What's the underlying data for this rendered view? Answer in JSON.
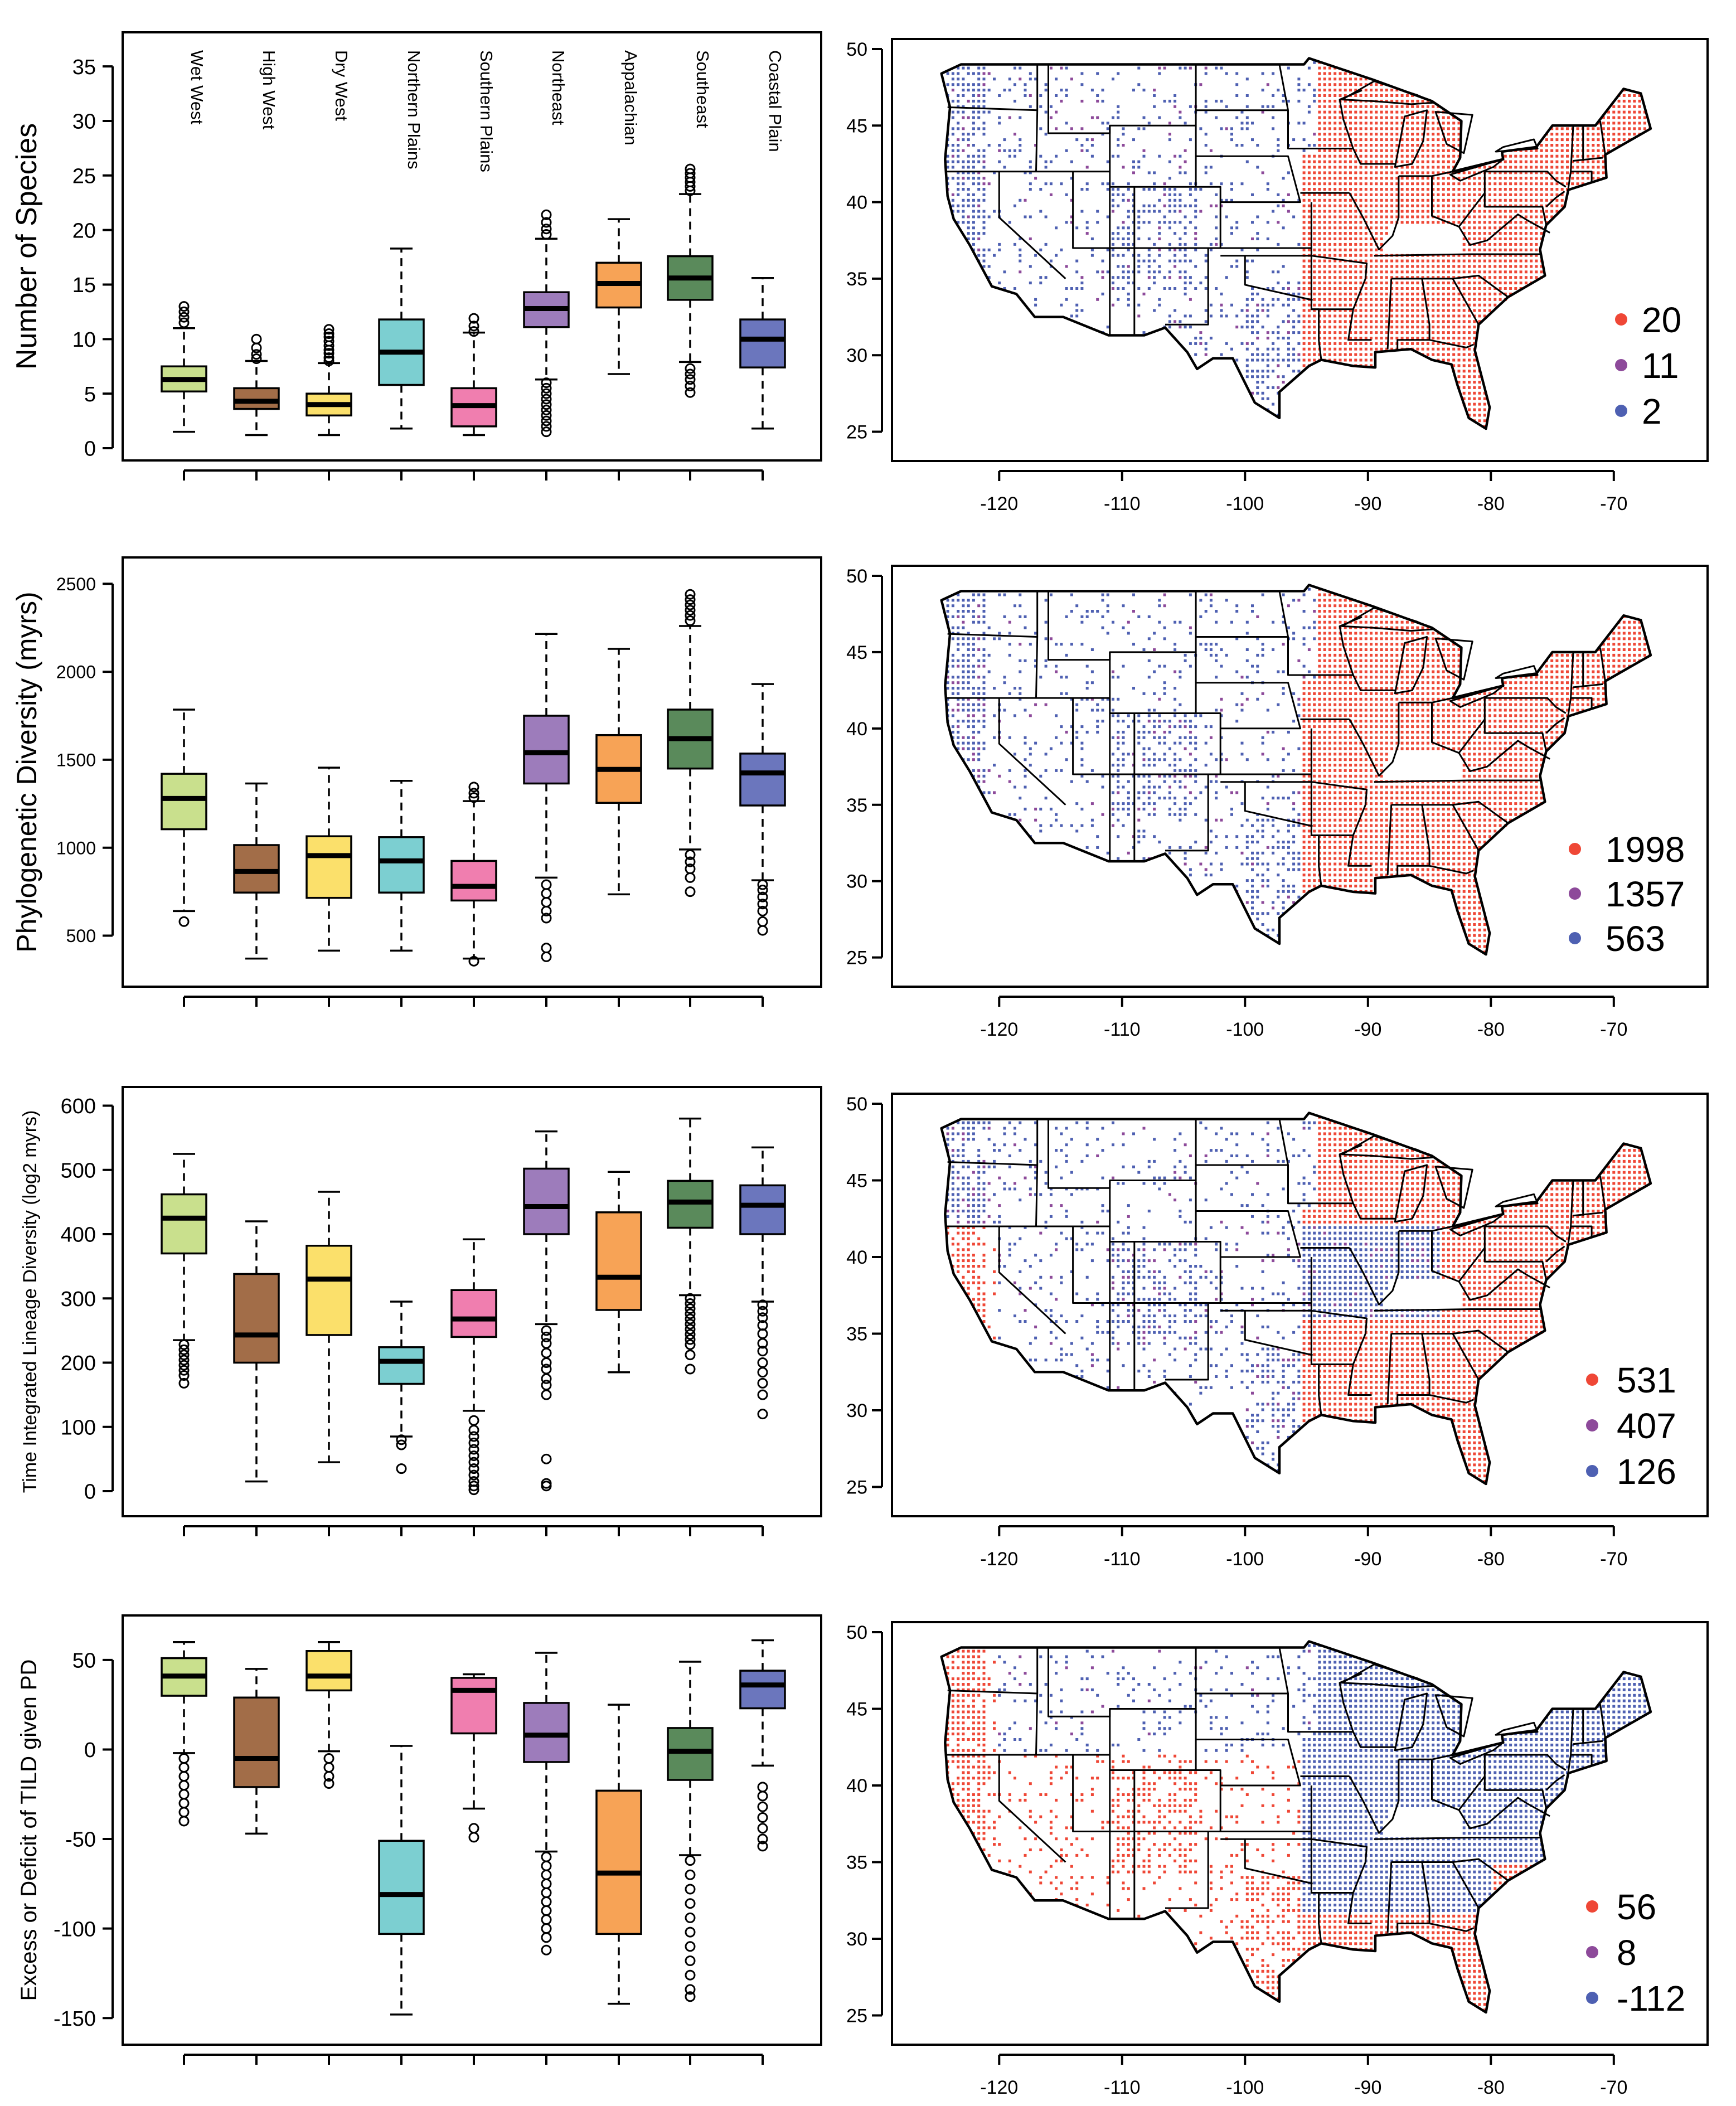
{
  "regions": [
    "Wet West",
    "High West",
    "Dry West",
    "Northern Plains",
    "Southern Plains",
    "Northeast",
    "Appalachian",
    "Southeast",
    "Coastal Plain"
  ],
  "colors": {
    "regions": [
      "#c9e08d",
      "#a26d48",
      "#fbe06b",
      "#7ccfd1",
      "#f07eaf",
      "#9d7cbb",
      "#f7a356",
      "#5a8a5b",
      "#6b76bd"
    ],
    "high": "#ef4736",
    "mid": "#8d4a9a",
    "low": "#4e60b2"
  },
  "chart_data": [
    {
      "type": "box",
      "id": "species",
      "ylabel": "Number of Species",
      "ylim": [
        0,
        37
      ],
      "yticks": [
        0,
        5,
        10,
        15,
        20,
        25,
        30,
        35
      ],
      "categories": [
        "Wet West",
        "High West",
        "Dry West",
        "Northern Plains",
        "Southern Plains",
        "Northeast",
        "Appalachian",
        "Southeast",
        "Coastal Plain"
      ],
      "boxes": [
        {
          "min": 1.5,
          "q1": 5.2,
          "median": 6.3,
          "q3": 7.5,
          "max": 11,
          "outliers": [
            11.5,
            12.0,
            12.5,
            13.0
          ]
        },
        {
          "min": 1.2,
          "q1": 3.6,
          "median": 4.3,
          "q3": 5.5,
          "max": 8,
          "outliers": [
            8.2,
            8.6,
            9.2,
            10.0
          ]
        },
        {
          "min": 1.2,
          "q1": 3.0,
          "median": 4.0,
          "q3": 5.0,
          "max": 7.8,
          "outliers": [
            8.0,
            8.3,
            8.7,
            9.0,
            9.4,
            9.8,
            10.2,
            10.5,
            10.9
          ]
        },
        {
          "min": 1.8,
          "q1": 5.8,
          "median": 8.8,
          "q3": 11.8,
          "max": 18.3,
          "outliers": []
        },
        {
          "min": 1.2,
          "q1": 2.0,
          "median": 3.9,
          "q3": 5.5,
          "max": 10.6,
          "outliers": [
            10.7,
            11.2,
            11.9
          ]
        },
        {
          "min": 6.3,
          "q1": 11.1,
          "median": 12.8,
          "q3": 14.3,
          "max": 19.2,
          "outliers": [
            19.6,
            20.1,
            20.7,
            21.4,
            1.5,
            2.0,
            2.5,
            3.0,
            3.5,
            4.0,
            4.5,
            5.0,
            5.5,
            6.0
          ]
        },
        {
          "min": 6.8,
          "q1": 12.9,
          "median": 15.1,
          "q3": 17.0,
          "max": 21.0,
          "outliers": []
        },
        {
          "min": 7.9,
          "q1": 13.6,
          "median": 15.6,
          "q3": 17.6,
          "max": 23.3,
          "outliers": [
            23.6,
            24.0,
            24.4,
            24.8,
            25.2,
            25.6,
            7.3,
            6.8,
            6.3,
            5.7,
            5.1
          ]
        },
        {
          "min": 1.8,
          "q1": 7.4,
          "median": 10.0,
          "q3": 11.8,
          "max": 15.6,
          "outliers": []
        }
      ],
      "map_legend": [
        "20",
        "11",
        "2"
      ]
    },
    {
      "type": "box",
      "id": "pd",
      "ylabel": "Phylogenetic Diversity (myrs)",
      "ylim": [
        280,
        2580
      ],
      "yticks": [
        500,
        1000,
        1500,
        2000,
        2500
      ],
      "categories": [
        "Wet West",
        "High West",
        "Dry West",
        "Northern Plains",
        "Southern Plains",
        "Northeast",
        "Appalachian",
        "Southeast",
        "Coastal Plain"
      ],
      "boxes": [
        {
          "min": 640,
          "q1": 1105,
          "median": 1280,
          "q3": 1420,
          "max": 1785,
          "outliers": [
            580
          ]
        },
        {
          "min": 370,
          "q1": 745,
          "median": 865,
          "q3": 1015,
          "max": 1365,
          "outliers": []
        },
        {
          "min": 415,
          "q1": 715,
          "median": 955,
          "q3": 1065,
          "max": 1455,
          "outliers": []
        },
        {
          "min": 415,
          "q1": 745,
          "median": 925,
          "q3": 1060,
          "max": 1380,
          "outliers": []
        },
        {
          "min": 370,
          "q1": 700,
          "median": 780,
          "q3": 925,
          "max": 1265,
          "outliers": [
            1285,
            1310,
            1345,
            355
          ]
        },
        {
          "min": 830,
          "q1": 1365,
          "median": 1540,
          "q3": 1750,
          "max": 2215,
          "outliers": [
            790,
            740,
            690,
            640,
            600,
            430,
            380
          ]
        },
        {
          "min": 735,
          "q1": 1255,
          "median": 1445,
          "q3": 1640,
          "max": 2130,
          "outliers": []
        },
        {
          "min": 990,
          "q1": 1450,
          "median": 1620,
          "q3": 1785,
          "max": 2260,
          "outliers": [
            2290,
            2320,
            2350,
            2380,
            2410,
            2440,
            960,
            920,
            880,
            830,
            750
          ]
        },
        {
          "min": 815,
          "q1": 1240,
          "median": 1425,
          "q3": 1535,
          "max": 1930,
          "outliers": [
            790,
            760,
            720,
            680,
            640,
            580,
            530
          ]
        }
      ],
      "map_legend": [
        "1998",
        "1357",
        "563"
      ]
    },
    {
      "type": "box",
      "id": "tild",
      "ylabel": "Time Integrated Lineage Diversity (log2 myrs)",
      "ylim": [
        -20,
        610
      ],
      "yticks": [
        0,
        100,
        200,
        300,
        400,
        500,
        600
      ],
      "categories": [
        "Wet West",
        "High West",
        "Dry West",
        "Northern Plains",
        "Southern Plains",
        "Northeast",
        "Appalachian",
        "Southeast",
        "Coastal Plain"
      ],
      "boxes": [
        {
          "min": 235,
          "q1": 370,
          "median": 425,
          "q3": 462,
          "max": 525,
          "outliers": [
            228,
            220,
            212,
            204,
            196,
            188,
            180,
            168
          ]
        },
        {
          "min": 15,
          "q1": 200,
          "median": 243,
          "q3": 338,
          "max": 420,
          "outliers": []
        },
        {
          "min": 45,
          "q1": 243,
          "median": 330,
          "q3": 382,
          "max": 466,
          "outliers": []
        },
        {
          "min": 85,
          "q1": 167,
          "median": 202,
          "q3": 224,
          "max": 295,
          "outliers": [
            80,
            72,
            35
          ]
        },
        {
          "min": 125,
          "q1": 240,
          "median": 268,
          "q3": 313,
          "max": 392,
          "outliers": [
            110,
            95,
            85,
            75,
            65,
            55,
            45,
            35,
            25,
            15,
            8,
            2
          ]
        },
        {
          "min": 260,
          "q1": 400,
          "median": 443,
          "q3": 502,
          "max": 560,
          "outliers": [
            250,
            240,
            230,
            215,
            200,
            190,
            175,
            165,
            150,
            50,
            12,
            8
          ]
        },
        {
          "min": 185,
          "q1": 282,
          "median": 333,
          "q3": 434,
          "max": 497,
          "outliers": []
        },
        {
          "min": 305,
          "q1": 410,
          "median": 450,
          "q3": 483,
          "max": 580,
          "outliers": [
            300,
            292,
            284,
            276,
            268,
            260,
            252,
            244,
            236,
            228,
            212,
            190
          ]
        },
        {
          "min": 295,
          "q1": 400,
          "median": 445,
          "q3": 476,
          "max": 535,
          "outliers": [
            290,
            280,
            270,
            258,
            245,
            230,
            218,
            200,
            185,
            168,
            150,
            120
          ]
        }
      ],
      "map_legend": [
        "531",
        "407",
        "126"
      ]
    },
    {
      "type": "box",
      "id": "excess",
      "ylabel": "Excess or Deficit of TILD given PD",
      "ylim": [
        -158,
        68
      ],
      "yticks": [
        -150,
        -100,
        -50,
        0,
        50
      ],
      "categories": [
        "Wet West",
        "High West",
        "Dry West",
        "Northern Plains",
        "Southern Plains",
        "Northeast",
        "Appalachian",
        "Southeast",
        "Coastal Plain"
      ],
      "boxes": [
        {
          "min": -2,
          "q1": 30,
          "median": 41,
          "q3": 51,
          "max": 60,
          "outliers": [
            -5,
            -10,
            -15,
            -20,
            -25,
            -30,
            -35,
            -40
          ]
        },
        {
          "min": -47,
          "q1": -21,
          "median": -5,
          "q3": 29,
          "max": 45,
          "outliers": []
        },
        {
          "min": -1,
          "q1": 33,
          "median": 41,
          "q3": 55,
          "max": 60,
          "outliers": [
            -5,
            -10,
            -15,
            -19
          ]
        },
        {
          "min": -148,
          "q1": -103,
          "median": -81,
          "q3": -51,
          "max": 2,
          "outliers": []
        },
        {
          "min": -33,
          "q1": 9,
          "median": 33,
          "q3": 40,
          "max": 42,
          "outliers": [
            -44,
            -49
          ]
        },
        {
          "min": -57,
          "q1": -7,
          "median": 8,
          "q3": 26,
          "max": 54,
          "outliers": [
            -60,
            -65,
            -70,
            -75,
            -80,
            -85,
            -90,
            -95,
            -100,
            -105,
            -112
          ]
        },
        {
          "min": -142,
          "q1": -103,
          "median": -69,
          "q3": -23,
          "max": 25,
          "outliers": []
        },
        {
          "min": -59,
          "q1": -17,
          "median": -1,
          "q3": 12,
          "max": 49,
          "outliers": [
            -62,
            -70,
            -78,
            -86,
            -94,
            -102,
            -110,
            -118,
            -126,
            -134,
            -138
          ]
        },
        {
          "min": -9,
          "q1": 23,
          "median": 36,
          "q3": 44,
          "max": 61,
          "outliers": [
            -21,
            -26,
            -32,
            -38,
            -44,
            -50,
            -54
          ]
        }
      ],
      "map_legend": [
        "56",
        "8",
        "-112"
      ]
    }
  ],
  "map_axes": {
    "xticks": [
      "-120",
      "-110",
      "-100",
      "-90",
      "-80",
      "-70"
    ],
    "yticks": [
      "25",
      "30",
      "35",
      "40",
      "45",
      "50"
    ],
    "xlim": [
      -126,
      -66
    ],
    "ylim": [
      24,
      50
    ]
  }
}
